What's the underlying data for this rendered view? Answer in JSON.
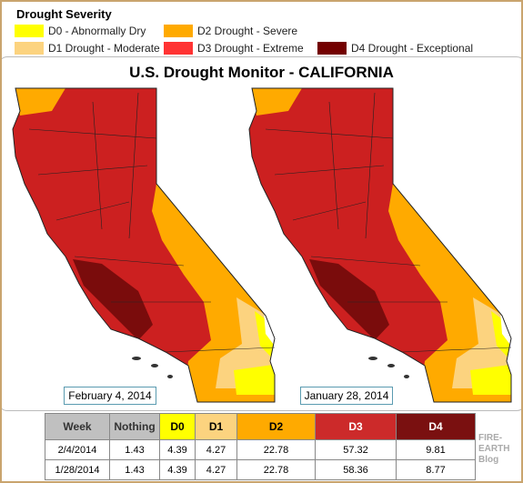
{
  "legend": {
    "title": "Drought Severity",
    "items": [
      {
        "label": "D0 - Abnormally Dry",
        "color": "#ffff00"
      },
      {
        "label": "D1 Drought - Moderate",
        "color": "#fcd37f"
      },
      {
        "label": "D2 Drought - Severe",
        "color": "#ffaa00"
      },
      {
        "label": "D3 Drought - Extreme",
        "color": "#ff3333"
      },
      {
        "label": "D4 Drought - Exceptional",
        "color": "#730000"
      }
    ]
  },
  "map_title": "U.S. Drought Monitor - CALIFORNIA",
  "maps": [
    {
      "date": "February 4, 2014"
    },
    {
      "date": "January 28, 2014"
    }
  ],
  "table": {
    "header": [
      "Week",
      "Nothing",
      "D0",
      "D1",
      "D2",
      "D3",
      "D4"
    ],
    "rows": [
      [
        "2/4/2014",
        "1.43",
        "4.39",
        "4.27",
        "22.78",
        "57.32",
        "9.81"
      ],
      [
        "1/28/2014",
        "1.43",
        "4.39",
        "4.27",
        "22.78",
        "58.36",
        "8.77"
      ]
    ]
  },
  "watermark": [
    "FIRE-",
    "EARTH",
    "Blog"
  ]
}
